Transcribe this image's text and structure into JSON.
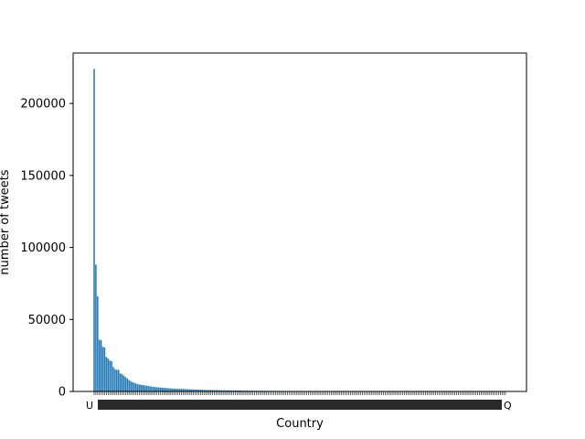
{
  "chart_data": {
    "type": "bar",
    "title": "",
    "xlabel": "Country",
    "ylabel": "number of tweets",
    "ylim": [
      0,
      235000
    ],
    "yticks": [
      0,
      50000,
      100000,
      150000,
      200000
    ],
    "bar_color": "#1f77b4",
    "grid": false,
    "legend": "none",
    "first_category_label": "U",
    "last_category_label": "Q",
    "category_count": 237,
    "values": [
      224000,
      88000,
      66000,
      36000,
      35500,
      31000,
      30500,
      24000,
      23000,
      21500,
      21000,
      17000,
      15500,
      15000,
      15000,
      12500,
      12000,
      11000,
      10000,
      9000,
      8000,
      7200,
      6500,
      6000,
      5500,
      5000,
      4800,
      4600,
      4400,
      4200,
      4000,
      3800,
      3600,
      3400,
      3200,
      3000,
      2900,
      2800,
      2700,
      2600,
      2500,
      2400,
      2300,
      2200,
      2100,
      2000,
      1950,
      1900,
      1850,
      1800,
      1750,
      1700,
      1650,
      1600,
      1550,
      1500,
      1450,
      1400,
      1350,
      1300,
      1250,
      1200,
      1150,
      1100,
      1050,
      1000,
      980,
      960,
      940,
      920,
      900,
      880,
      860,
      840,
      820,
      800,
      780,
      760,
      740,
      720,
      700,
      680,
      660,
      640,
      620,
      600,
      580,
      560,
      540,
      520,
      500,
      490,
      480,
      470,
      460,
      450,
      440,
      430,
      420,
      410,
      400,
      390,
      380,
      370,
      360,
      350,
      340,
      330,
      320,
      310,
      300,
      290,
      280,
      270,
      260,
      250,
      240,
      230,
      220,
      210,
      200,
      195,
      190,
      185,
      180,
      175,
      170,
      165,
      160,
      155,
      150,
      145,
      140,
      135,
      130,
      125,
      120,
      115,
      110,
      105,
      100,
      97,
      94,
      91,
      88,
      85,
      82,
      79,
      76,
      73,
      70,
      68,
      66,
      64,
      62,
      60,
      58,
      56,
      54,
      52,
      50,
      48,
      46,
      44,
      42,
      40,
      38,
      36,
      34,
      32,
      30,
      29,
      28,
      27,
      26,
      25,
      24,
      23,
      22,
      21,
      20,
      19,
      18,
      17,
      16,
      15,
      14,
      13,
      12,
      11,
      10,
      10,
      9,
      9,
      8,
      8,
      7,
      7,
      6,
      6,
      5,
      5,
      5,
      4,
      4,
      4,
      3,
      3,
      3,
      3,
      2,
      2,
      2,
      2,
      2,
      2,
      1,
      1,
      1,
      1,
      1,
      1,
      1,
      1,
      1,
      1,
      1,
      1,
      1,
      1,
      1,
      1,
      1,
      1,
      1,
      1,
      1,
      1,
      1,
      1,
      1,
      1,
      1,
      1,
      1,
      1,
      1
    ]
  }
}
